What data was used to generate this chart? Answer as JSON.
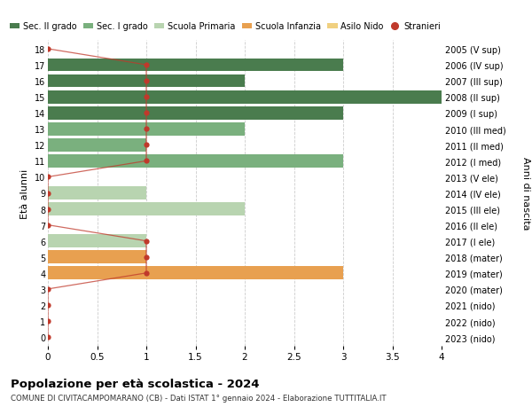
{
  "ages": [
    18,
    17,
    16,
    15,
    14,
    13,
    12,
    11,
    10,
    9,
    8,
    7,
    6,
    5,
    4,
    3,
    2,
    1,
    0
  ],
  "right_labels": [
    "2005 (V sup)",
    "2006 (IV sup)",
    "2007 (III sup)",
    "2008 (II sup)",
    "2009 (I sup)",
    "2010 (III med)",
    "2011 (II med)",
    "2012 (I med)",
    "2013 (V ele)",
    "2014 (IV ele)",
    "2015 (III ele)",
    "2016 (II ele)",
    "2017 (I ele)",
    "2018 (mater)",
    "2019 (mater)",
    "2020 (mater)",
    "2021 (nido)",
    "2022 (nido)",
    "2023 (nido)"
  ],
  "bar_values": [
    0,
    3,
    2,
    4,
    3,
    2,
    1,
    3,
    0,
    1,
    2,
    0,
    1,
    1,
    3,
    0,
    0,
    0,
    0
  ],
  "bar_colors": [
    "#4a7c4e",
    "#4a7c4e",
    "#4a7c4e",
    "#4a7c4e",
    "#4a7c4e",
    "#7ab07e",
    "#7ab07e",
    "#7ab07e",
    "#b8d4b0",
    "#b8d4b0",
    "#b8d4b0",
    "#b8d4b0",
    "#b8d4b0",
    "#e8a050",
    "#e8a050",
    "#e8a050",
    "#f0d080",
    "#f0d080",
    "#f0d080"
  ],
  "stranieri_values": [
    0,
    1,
    1,
    1,
    1,
    1,
    1,
    1,
    0,
    0,
    0,
    0,
    1,
    1,
    1,
    0,
    0,
    0,
    0
  ],
  "legend_labels": [
    "Sec. II grado",
    "Sec. I grado",
    "Scuola Primaria",
    "Scuola Infanzia",
    "Asilo Nido",
    "Stranieri"
  ],
  "legend_colors": [
    "#4a7c4e",
    "#7ab07e",
    "#b8d4b0",
    "#e8a050",
    "#f0d080",
    "#c0392b"
  ],
  "title": "Popolazione per età scolastica - 2024",
  "subtitle": "COMUNE DI CIVITACAMPOMARANO (CB) - Dati ISTAT 1° gennaio 2024 - Elaborazione TUTTITALIA.IT",
  "ylabel": "Età alunni",
  "right_ylabel": "Anni di nascita",
  "xlim": [
    0,
    4.0
  ],
  "xticks": [
    0,
    0.5,
    1.0,
    1.5,
    2.0,
    2.5,
    3.0,
    3.5,
    4.0
  ],
  "bg_color": "#ffffff",
  "stranieri_color": "#c0392b",
  "grid_color": "#cccccc"
}
